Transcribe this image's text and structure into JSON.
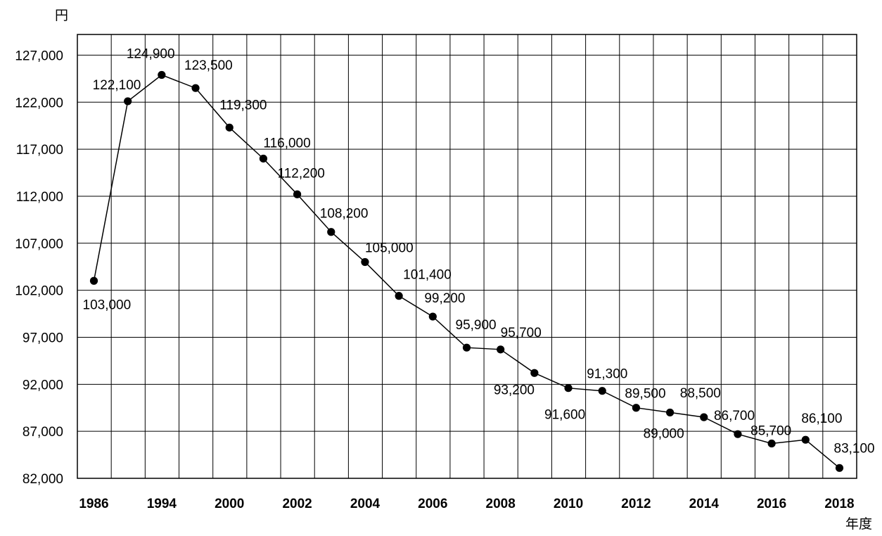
{
  "chart_data": {
    "type": "line",
    "y_unit": "円",
    "x_unit": "年度",
    "ylim": [
      82000,
      129200
    ],
    "y_ticks": [
      82000,
      87000,
      92000,
      97000,
      102000,
      107000,
      112000,
      117000,
      122000,
      127000
    ],
    "y_tick_labels": [
      "82,000",
      "87,000",
      "92,000",
      "97,000",
      "102,000",
      "107,000",
      "112,000",
      "117,000",
      "122,000",
      "127,000"
    ],
    "x_tick_labels": [
      "1986",
      "1994",
      "2000",
      "2002",
      "2004",
      "2006",
      "2008",
      "2010",
      "2012",
      "2014",
      "2016",
      "2018"
    ],
    "grid": true,
    "values": [
      103000,
      122100,
      124900,
      123500,
      119300,
      116000,
      112200,
      108200,
      105000,
      101400,
      99200,
      95900,
      95700,
      93200,
      91600,
      91300,
      89500,
      89000,
      88500,
      86700,
      85700,
      86100,
      83100
    ],
    "data_labels": [
      "103,000",
      "122,100",
      "124,900",
      "123,500",
      "119,300",
      "116,000",
      "112,200",
      "108,200",
      "105,000",
      "101,400",
      "99,200",
      "95,900",
      "95,700",
      "93,200",
      "91,600",
      "91,300",
      "89,500",
      "89,000",
      "88,500",
      "86,700",
      "85,700",
      "86,100",
      "83,100"
    ]
  }
}
